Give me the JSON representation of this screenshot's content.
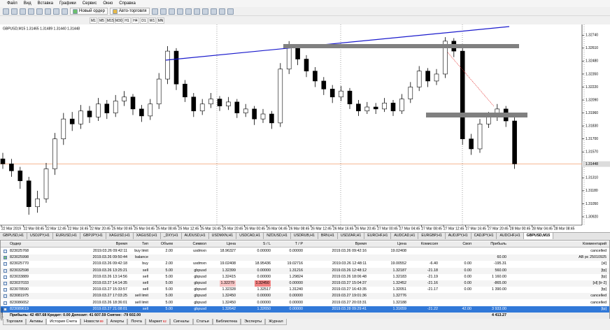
{
  "menu": [
    "Файл",
    "Вид",
    "Вставка",
    "Графики",
    "Сервис",
    "Окно",
    "Справка"
  ],
  "toolbar": {
    "new_order": "Новый ордер",
    "autotrading": "Авто-торговля"
  },
  "timeframes": [
    "M1",
    "M5",
    "M15",
    "M30",
    "H1",
    "H4",
    "D1",
    "W1",
    "MN"
  ],
  "chart_data": {
    "type": "candlestick",
    "title": "GBPUSD,M15  1.31465 1.31489 1.31440 1.31448",
    "ohlc": [
      [
        1.315,
        1.3156,
        1.314,
        1.3145
      ],
      [
        1.3145,
        1.315,
        1.3132,
        1.3138
      ],
      [
        1.3138,
        1.3142,
        1.312,
        1.3128
      ],
      [
        1.3128,
        1.3132,
        1.3094,
        1.3102
      ],
      [
        1.3102,
        1.3118,
        1.3096,
        1.311
      ],
      [
        1.311,
        1.3146,
        1.3106,
        1.314
      ],
      [
        1.314,
        1.3176,
        1.3134,
        1.317
      ],
      [
        1.317,
        1.3196,
        1.3164,
        1.319
      ],
      [
        1.319,
        1.3197,
        1.3178,
        1.3185
      ],
      [
        1.3185,
        1.3204,
        1.318,
        1.3198
      ],
      [
        1.3198,
        1.3203,
        1.3186,
        1.3192
      ],
      [
        1.3192,
        1.3211,
        1.3188,
        1.3205
      ],
      [
        1.3205,
        1.3209,
        1.319,
        1.3196
      ],
      [
        1.3196,
        1.3214,
        1.3192,
        1.3208
      ],
      [
        1.3208,
        1.3218,
        1.3203,
        1.3212
      ],
      [
        1.3212,
        1.3215,
        1.3194,
        1.32
      ],
      [
        1.32,
        1.3204,
        1.3187,
        1.3193
      ],
      [
        1.3193,
        1.321,
        1.3189,
        1.3205
      ],
      [
        1.3205,
        1.3236,
        1.32,
        1.323
      ],
      [
        1.323,
        1.3263,
        1.3225,
        1.3258
      ],
      [
        1.3258,
        1.3261,
        1.3219,
        1.3225
      ],
      [
        1.3225,
        1.3229,
        1.3207,
        1.3212
      ],
      [
        1.3212,
        1.3216,
        1.3192,
        1.3198
      ],
      [
        1.3198,
        1.321,
        1.3194,
        1.3205
      ],
      [
        1.3205,
        1.3216,
        1.3201,
        1.321
      ],
      [
        1.321,
        1.3213,
        1.3198,
        1.3203
      ],
      [
        1.3203,
        1.3212,
        1.3199,
        1.3207
      ],
      [
        1.3207,
        1.321,
        1.3191,
        1.3196
      ],
      [
        1.3196,
        1.3205,
        1.3192,
        1.32
      ],
      [
        1.32,
        1.3203,
        1.3184,
        1.319
      ],
      [
        1.319,
        1.32,
        1.3186,
        1.3195
      ],
      [
        1.3195,
        1.3198,
        1.318,
        1.3186
      ],
      [
        1.3186,
        1.3246,
        1.3182,
        1.324
      ],
      [
        1.324,
        1.3268,
        1.3235,
        1.3262
      ],
      [
        1.3262,
        1.3265,
        1.3244,
        1.325
      ],
      [
        1.325,
        1.3254,
        1.3232,
        1.3238
      ],
      [
        1.3238,
        1.3242,
        1.3222,
        1.3228
      ],
      [
        1.3228,
        1.3232,
        1.3214,
        1.322
      ],
      [
        1.322,
        1.3224,
        1.3206,
        1.3212
      ],
      [
        1.3212,
        1.3223,
        1.3208,
        1.3218
      ],
      [
        1.3218,
        1.3221,
        1.32,
        1.3205
      ],
      [
        1.3205,
        1.3209,
        1.3193,
        1.3198
      ],
      [
        1.3198,
        1.3207,
        1.3195,
        1.3202
      ],
      [
        1.3202,
        1.3206,
        1.3195,
        1.32
      ],
      [
        1.32,
        1.3211,
        1.3197,
        1.3206
      ],
      [
        1.3206,
        1.3209,
        1.3193,
        1.3198
      ],
      [
        1.3198,
        1.3215,
        1.3195,
        1.321
      ],
      [
        1.321,
        1.3227,
        1.3206,
        1.3222
      ],
      [
        1.3222,
        1.3243,
        1.3218,
        1.3238
      ],
      [
        1.3238,
        1.3241,
        1.3222,
        1.3228
      ],
      [
        1.3228,
        1.324,
        1.3224,
        1.3235
      ],
      [
        1.3235,
        1.3272,
        1.3231,
        1.3268
      ],
      [
        1.3268,
        1.3271,
        1.3252,
        1.3258
      ],
      [
        1.3258,
        1.3262,
        1.3164,
        1.317
      ],
      [
        1.317,
        1.3175,
        1.3154,
        1.316
      ],
      [
        1.316,
        1.319,
        1.3156,
        1.3185
      ],
      [
        1.3185,
        1.3197,
        1.3181,
        1.3192
      ],
      [
        1.3192,
        1.3205,
        1.3188,
        1.32
      ],
      [
        1.32,
        1.3203,
        1.3182,
        1.3188
      ],
      [
        1.3188,
        1.3192,
        1.314,
        1.3145
      ]
    ],
    "ylim": [
      1.3085,
      1.3284
    ],
    "yticks": [
      {
        "value": 1.3092,
        "label": "1.30920"
      },
      {
        "value": 1.3105,
        "label": "1.31050"
      },
      {
        "value": 1.3118,
        "label": "1.31180"
      },
      {
        "value": 1.3131,
        "label": "1.31310"
      },
      {
        "value": 1.3157,
        "label": "1.31570"
      },
      {
        "value": 1.317,
        "label": "1.31700"
      },
      {
        "value": 1.3183,
        "label": "1.31830"
      },
      {
        "value": 1.3196,
        "label": "1.31960"
      },
      {
        "value": 1.3209,
        "label": "1.32090"
      },
      {
        "value": 1.3222,
        "label": "1.32220"
      },
      {
        "value": 1.3235,
        "label": "1.32350"
      },
      {
        "value": 1.3248,
        "label": "1.32480"
      },
      {
        "value": 1.3261,
        "label": "1.32610"
      },
      {
        "value": 1.3274,
        "label": "1.32740"
      }
    ],
    "last_price": 1.31448,
    "x_labels": [
      "22 Mar 2019",
      "22 Mar 08:45",
      "22 Mar 12:45",
      "22 Mar 16:45",
      "22 Mar 20:45",
      "25 Mar 00:45",
      "25 Mar 04:45",
      "25 Mar 08:45",
      "25 Mar 12:45",
      "25 Mar 16:45",
      "25 Mar 20:45",
      "26 Mar 00:45",
      "26 Mar 04:45",
      "26 Mar 08:45",
      "26 Mar 12:45",
      "26 Mar 16:45",
      "26 Mar 20:45",
      "27 Mar 00:45",
      "27 Mar 04:45",
      "27 Mar 08:45",
      "27 Mar 12:45",
      "27 Mar 16:45",
      "27 Mar 20:45",
      "28 Mar 00:45",
      "28 Mar 04:45",
      "28 Mar 08:45"
    ]
  },
  "symbol_tabs": [
    "GBPUSD,H1",
    "USDJPY,H1",
    "EURUSD,H1",
    "GBPJPY,H1",
    "XAGUSD,H1",
    "XAGUSD,H1",
    "_DXY,H1",
    "AUDUSD,H1",
    "USDMXN,H1",
    "USDCAD,H1",
    "NZDUSD,H1",
    "USDRUB,H1",
    "BRN,H1",
    "USDZAR,H1",
    "EURCHF,H1",
    "AUDCAD,H1",
    "EURGBP,H1",
    "AUDJPY,H1",
    "CADJPY,H1",
    "AUDCHF,H1",
    "GBPUSD,M15"
  ],
  "terminal": {
    "columns": [
      "Ордер",
      "Время",
      "Тип",
      "Объем",
      "Символ",
      "Цена",
      "S / L",
      "T / P",
      "Время",
      "Цена",
      "Комиссия",
      "Своп",
      "Прибыль",
      "Комментарий"
    ],
    "rows": [
      [
        "823025768",
        "2019.03.26 09:42:11",
        "buy limit",
        "2.00",
        "usdmxn",
        "18.96327",
        "0.00000",
        "0.00000",
        "2019.03.26 09:42:16",
        "19.02408",
        null,
        null,
        null,
        "cancelled"
      ],
      [
        "823025998",
        "2019.03.26 09:50:44",
        "balance",
        null,
        null,
        null,
        null,
        null,
        null,
        null,
        null,
        null,
        "60.00",
        "AB pc 25010925"
      ],
      [
        "823025770",
        "2019.03.26 09:42:18",
        "buy",
        "2.00",
        "usdmxn",
        "19.02408",
        "18.95436",
        "19.02716",
        "2019.03.26 12:48:11",
        "19.00552",
        "-6.40",
        "0.00",
        "-195.31",
        "[sl]"
      ],
      [
        "823032598",
        "2019.03.26 13:25:21",
        "sell",
        "5.00",
        "gbpusd",
        "1.32399",
        "0.00000",
        "1.31216",
        "2019.03.26 12:48:12",
        "1.32187",
        "-21.18",
        "0.00",
        "560.00",
        "[tp]"
      ],
      [
        "823033889",
        "2019.03.26 13:14:56",
        "sell",
        "5.00",
        "gbpusd",
        "1.32415",
        "0.00000",
        "1.29824",
        "2019.03.26 18:06:48",
        "1.32183",
        "-21.19",
        "0.00",
        "1 160.00",
        "[tp]"
      ],
      [
        "823037033",
        "2019.03.27 14:14:35",
        "sell",
        "5.00",
        "gbpusd",
        "1.32279",
        "1.32450",
        "0.00000",
        "2019.03.27 15:04:37",
        "1.32452",
        "-21.16",
        "0.00",
        "-865.00",
        "[sl] [tr-2]"
      ],
      [
        "823078590",
        "2019.03.27 15:33:57",
        "sell",
        "5.00",
        "gbpusd",
        "1.32328",
        "1.32517",
        "1.31240",
        "2019.03.27 16:43:35",
        "1.32051",
        "-21.17",
        "0.00",
        "1 390.00",
        "[tp]"
      ],
      [
        "823081975",
        "2019.03.27 17:03:25",
        "sell limit",
        "5.00",
        "gbpusd",
        "1.32450",
        "0.00000",
        "0.00000",
        "2019.03.27 19:01:36",
        "1.32776",
        null,
        null,
        null,
        "cancelled"
      ],
      [
        "823086652",
        "2019.03.26 18:36:01",
        "sell limit",
        "5.00",
        "gbpusd",
        "1.32450",
        "0.00000",
        "0.00000",
        "2019.03.27 20:03:31",
        "1.32188",
        null,
        null,
        null,
        "cancelled"
      ],
      [
        "823089619",
        "2019.03.27 21:08:01",
        "sell",
        "5.00",
        "gbpusd",
        "1.32642",
        "1.32650",
        "0.00000",
        "2019.03.28 09:29:41",
        "1.31659",
        "-21.22",
        "42.00",
        "3 933.00",
        "[tp]"
      ]
    ],
    "summary": "Прибыль: 42 497.68  Кредит: 0.00  Депозит: 41 607.59  Снятие: -79 602.00",
    "total": "4 413.27"
  },
  "bottom_tabs": [
    {
      "label": "Торговля"
    },
    {
      "label": "Активы"
    },
    {
      "label": "История Счета"
    },
    {
      "label": "Новости",
      "badge": "99"
    },
    {
      "label": "Алерты"
    },
    {
      "label": "Почта"
    },
    {
      "label": "Маркет",
      "badge": "62"
    },
    {
      "label": "Сигналы"
    },
    {
      "label": "Статьи"
    },
    {
      "label": "Библиотека"
    },
    {
      "label": "Эксперты"
    },
    {
      "label": "Журнал"
    }
  ],
  "side_label": "Терминал"
}
